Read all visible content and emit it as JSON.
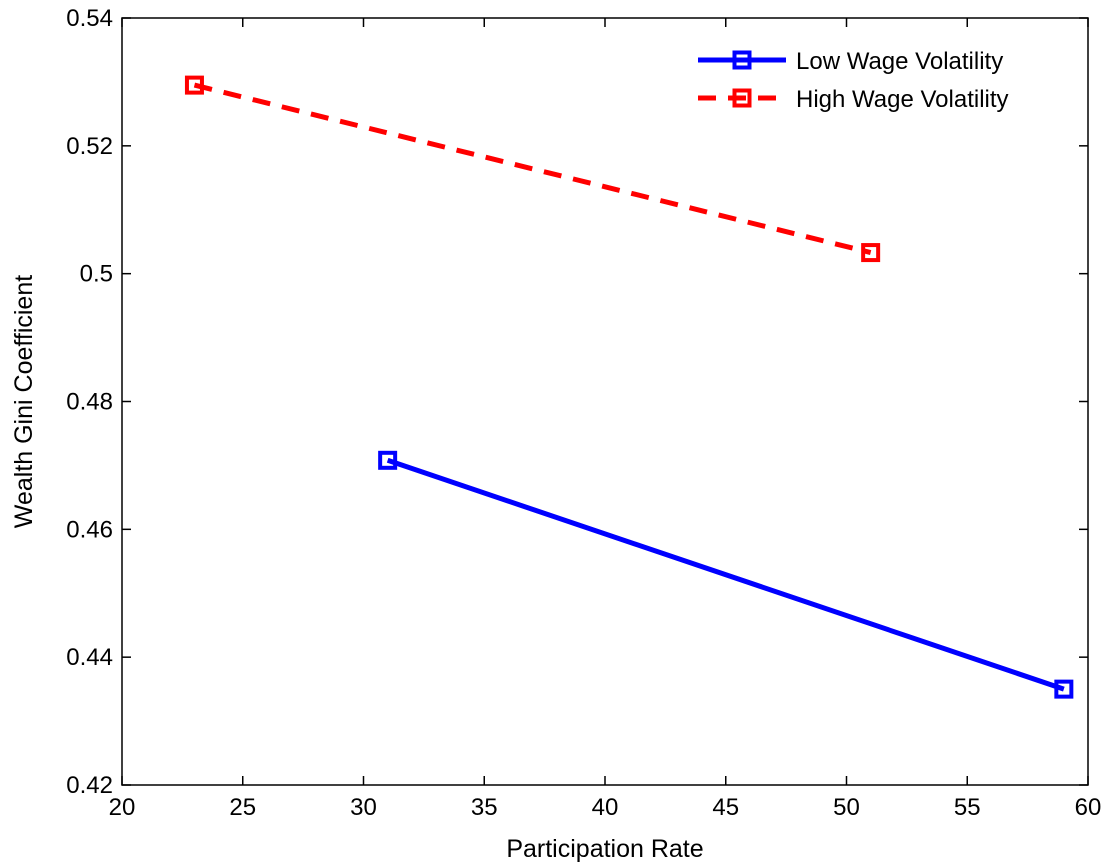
{
  "chart_data": {
    "type": "line",
    "title": "",
    "xlabel": "Participation Rate",
    "ylabel": "Wealth Gini Coefficient",
    "xlim": [
      20,
      60
    ],
    "ylim": [
      0.42,
      0.54
    ],
    "xticks": [
      20,
      25,
      30,
      35,
      40,
      45,
      50,
      55,
      60
    ],
    "yticks": [
      0.42,
      0.44,
      0.46,
      0.48,
      0.5,
      0.52,
      0.54
    ],
    "xtick_labels": [
      "20",
      "25",
      "30",
      "35",
      "40",
      "45",
      "50",
      "55",
      "60"
    ],
    "ytick_labels": [
      "0.42",
      "0.44",
      "0.46",
      "0.48",
      "0.5",
      "0.52",
      "0.54"
    ],
    "grid": false,
    "legend_position": "top-right",
    "series": [
      {
        "name": "Low Wage Volatility",
        "color": "#0000ff",
        "line_style": "solid",
        "marker": "square",
        "points": [
          {
            "x": 31,
            "y": 0.4708
          },
          {
            "x": 59,
            "y": 0.435
          }
        ]
      },
      {
        "name": "High Wage Volatility",
        "color": "#ff0000",
        "line_style": "dashed",
        "marker": "square",
        "points": [
          {
            "x": 23,
            "y": 0.5295
          },
          {
            "x": 51,
            "y": 0.5033
          }
        ]
      }
    ]
  }
}
